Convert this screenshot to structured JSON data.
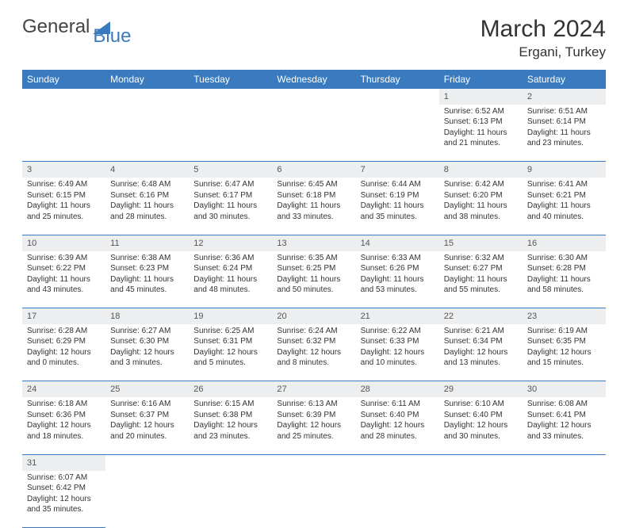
{
  "logo": {
    "text1": "General",
    "text2": "Blue"
  },
  "title": "March 2024",
  "location": "Ergani, Turkey",
  "colors": {
    "header_bg": "#3a7bbf",
    "header_fg": "#ffffff",
    "daynum_bg": "#eceef0",
    "border": "#3a7bbf",
    "text": "#333333"
  },
  "weekdays": [
    "Sunday",
    "Monday",
    "Tuesday",
    "Wednesday",
    "Thursday",
    "Friday",
    "Saturday"
  ],
  "weeks": [
    {
      "nums": [
        "",
        "",
        "",
        "",
        "",
        "1",
        "2"
      ],
      "cells": [
        null,
        null,
        null,
        null,
        null,
        {
          "sunrise": "Sunrise: 6:52 AM",
          "sunset": "Sunset: 6:13 PM",
          "day1": "Daylight: 11 hours",
          "day2": "and 21 minutes."
        },
        {
          "sunrise": "Sunrise: 6:51 AM",
          "sunset": "Sunset: 6:14 PM",
          "day1": "Daylight: 11 hours",
          "day2": "and 23 minutes."
        }
      ]
    },
    {
      "nums": [
        "3",
        "4",
        "5",
        "6",
        "7",
        "8",
        "9"
      ],
      "cells": [
        {
          "sunrise": "Sunrise: 6:49 AM",
          "sunset": "Sunset: 6:15 PM",
          "day1": "Daylight: 11 hours",
          "day2": "and 25 minutes."
        },
        {
          "sunrise": "Sunrise: 6:48 AM",
          "sunset": "Sunset: 6:16 PM",
          "day1": "Daylight: 11 hours",
          "day2": "and 28 minutes."
        },
        {
          "sunrise": "Sunrise: 6:47 AM",
          "sunset": "Sunset: 6:17 PM",
          "day1": "Daylight: 11 hours",
          "day2": "and 30 minutes."
        },
        {
          "sunrise": "Sunrise: 6:45 AM",
          "sunset": "Sunset: 6:18 PM",
          "day1": "Daylight: 11 hours",
          "day2": "and 33 minutes."
        },
        {
          "sunrise": "Sunrise: 6:44 AM",
          "sunset": "Sunset: 6:19 PM",
          "day1": "Daylight: 11 hours",
          "day2": "and 35 minutes."
        },
        {
          "sunrise": "Sunrise: 6:42 AM",
          "sunset": "Sunset: 6:20 PM",
          "day1": "Daylight: 11 hours",
          "day2": "and 38 minutes."
        },
        {
          "sunrise": "Sunrise: 6:41 AM",
          "sunset": "Sunset: 6:21 PM",
          "day1": "Daylight: 11 hours",
          "day2": "and 40 minutes."
        }
      ]
    },
    {
      "nums": [
        "10",
        "11",
        "12",
        "13",
        "14",
        "15",
        "16"
      ],
      "cells": [
        {
          "sunrise": "Sunrise: 6:39 AM",
          "sunset": "Sunset: 6:22 PM",
          "day1": "Daylight: 11 hours",
          "day2": "and 43 minutes."
        },
        {
          "sunrise": "Sunrise: 6:38 AM",
          "sunset": "Sunset: 6:23 PM",
          "day1": "Daylight: 11 hours",
          "day2": "and 45 minutes."
        },
        {
          "sunrise": "Sunrise: 6:36 AM",
          "sunset": "Sunset: 6:24 PM",
          "day1": "Daylight: 11 hours",
          "day2": "and 48 minutes."
        },
        {
          "sunrise": "Sunrise: 6:35 AM",
          "sunset": "Sunset: 6:25 PM",
          "day1": "Daylight: 11 hours",
          "day2": "and 50 minutes."
        },
        {
          "sunrise": "Sunrise: 6:33 AM",
          "sunset": "Sunset: 6:26 PM",
          "day1": "Daylight: 11 hours",
          "day2": "and 53 minutes."
        },
        {
          "sunrise": "Sunrise: 6:32 AM",
          "sunset": "Sunset: 6:27 PM",
          "day1": "Daylight: 11 hours",
          "day2": "and 55 minutes."
        },
        {
          "sunrise": "Sunrise: 6:30 AM",
          "sunset": "Sunset: 6:28 PM",
          "day1": "Daylight: 11 hours",
          "day2": "and 58 minutes."
        }
      ]
    },
    {
      "nums": [
        "17",
        "18",
        "19",
        "20",
        "21",
        "22",
        "23"
      ],
      "cells": [
        {
          "sunrise": "Sunrise: 6:28 AM",
          "sunset": "Sunset: 6:29 PM",
          "day1": "Daylight: 12 hours",
          "day2": "and 0 minutes."
        },
        {
          "sunrise": "Sunrise: 6:27 AM",
          "sunset": "Sunset: 6:30 PM",
          "day1": "Daylight: 12 hours",
          "day2": "and 3 minutes."
        },
        {
          "sunrise": "Sunrise: 6:25 AM",
          "sunset": "Sunset: 6:31 PM",
          "day1": "Daylight: 12 hours",
          "day2": "and 5 minutes."
        },
        {
          "sunrise": "Sunrise: 6:24 AM",
          "sunset": "Sunset: 6:32 PM",
          "day1": "Daylight: 12 hours",
          "day2": "and 8 minutes."
        },
        {
          "sunrise": "Sunrise: 6:22 AM",
          "sunset": "Sunset: 6:33 PM",
          "day1": "Daylight: 12 hours",
          "day2": "and 10 minutes."
        },
        {
          "sunrise": "Sunrise: 6:21 AM",
          "sunset": "Sunset: 6:34 PM",
          "day1": "Daylight: 12 hours",
          "day2": "and 13 minutes."
        },
        {
          "sunrise": "Sunrise: 6:19 AM",
          "sunset": "Sunset: 6:35 PM",
          "day1": "Daylight: 12 hours",
          "day2": "and 15 minutes."
        }
      ]
    },
    {
      "nums": [
        "24",
        "25",
        "26",
        "27",
        "28",
        "29",
        "30"
      ],
      "cells": [
        {
          "sunrise": "Sunrise: 6:18 AM",
          "sunset": "Sunset: 6:36 PM",
          "day1": "Daylight: 12 hours",
          "day2": "and 18 minutes."
        },
        {
          "sunrise": "Sunrise: 6:16 AM",
          "sunset": "Sunset: 6:37 PM",
          "day1": "Daylight: 12 hours",
          "day2": "and 20 minutes."
        },
        {
          "sunrise": "Sunrise: 6:15 AM",
          "sunset": "Sunset: 6:38 PM",
          "day1": "Daylight: 12 hours",
          "day2": "and 23 minutes."
        },
        {
          "sunrise": "Sunrise: 6:13 AM",
          "sunset": "Sunset: 6:39 PM",
          "day1": "Daylight: 12 hours",
          "day2": "and 25 minutes."
        },
        {
          "sunrise": "Sunrise: 6:11 AM",
          "sunset": "Sunset: 6:40 PM",
          "day1": "Daylight: 12 hours",
          "day2": "and 28 minutes."
        },
        {
          "sunrise": "Sunrise: 6:10 AM",
          "sunset": "Sunset: 6:40 PM",
          "day1": "Daylight: 12 hours",
          "day2": "and 30 minutes."
        },
        {
          "sunrise": "Sunrise: 6:08 AM",
          "sunset": "Sunset: 6:41 PM",
          "day1": "Daylight: 12 hours",
          "day2": "and 33 minutes."
        }
      ]
    },
    {
      "nums": [
        "31",
        "",
        "",
        "",
        "",
        "",
        ""
      ],
      "cells": [
        {
          "sunrise": "Sunrise: 6:07 AM",
          "sunset": "Sunset: 6:42 PM",
          "day1": "Daylight: 12 hours",
          "day2": "and 35 minutes."
        },
        null,
        null,
        null,
        null,
        null,
        null
      ]
    }
  ]
}
